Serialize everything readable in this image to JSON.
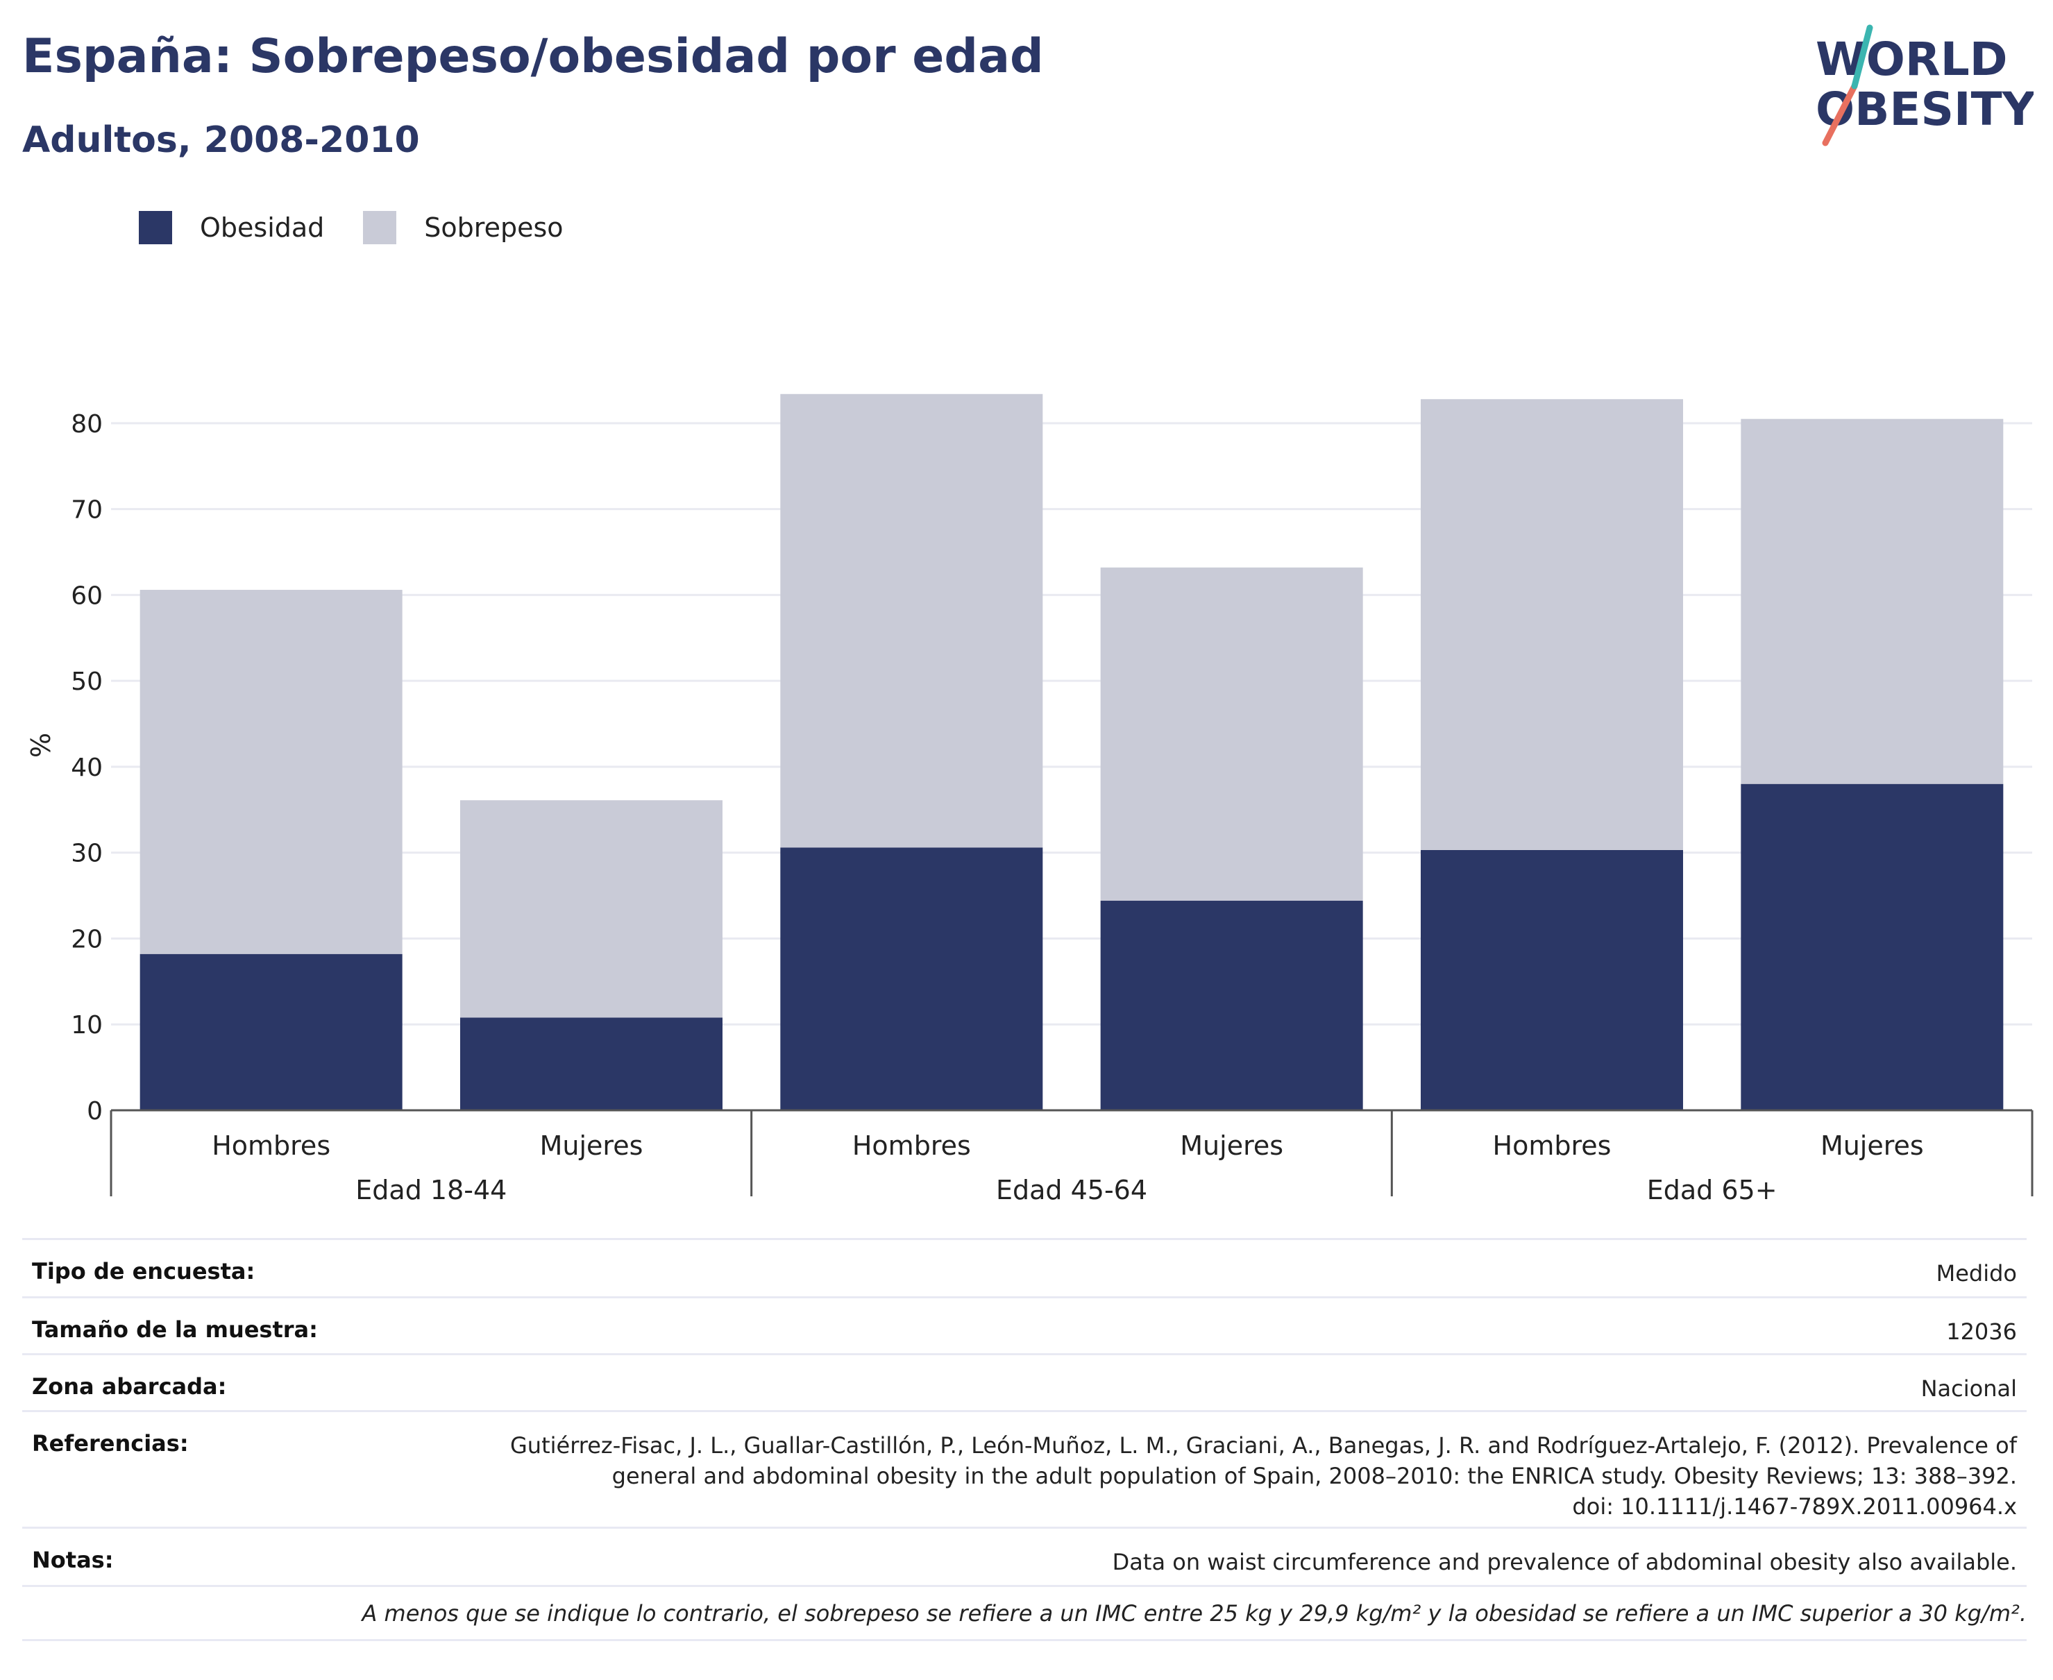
{
  "header": {
    "title": "España: Sobrepeso/obesidad por edad",
    "subtitle": "Adultos, 2008-2010"
  },
  "logo": {
    "line1": "WORLD",
    "line2": "OBESITY",
    "colors": [
      "#2b3766",
      "#e8705f",
      "#3bb5b0"
    ]
  },
  "legend": [
    {
      "label": "Obesidad",
      "color": "#2b3766"
    },
    {
      "label": "Sobrepeso",
      "color": "#c9cbd7"
    }
  ],
  "chart_data": {
    "type": "bar",
    "stacked": true,
    "title": "",
    "xlabel": "",
    "ylabel": "%",
    "ylim": [
      0,
      85
    ],
    "yticks": [
      0,
      10,
      20,
      30,
      40,
      50,
      60,
      70,
      80
    ],
    "grid": true,
    "legend_position": "top-left",
    "groups": [
      "Edad 18-44",
      "Edad 45-64",
      "Edad 65+"
    ],
    "categories": [
      "Hombres",
      "Mujeres",
      "Hombres",
      "Mujeres",
      "Hombres",
      "Mujeres"
    ],
    "series": [
      {
        "name": "Obesidad",
        "color": "#2b3766",
        "values": [
          18.2,
          10.8,
          30.6,
          24.4,
          30.3,
          38.0
        ]
      },
      {
        "name": "Sobrepeso",
        "color": "#c9cbd7",
        "values": [
          42.4,
          25.3,
          52.8,
          38.8,
          52.5,
          42.5
        ]
      }
    ]
  },
  "meta": {
    "survey_type": {
      "label": "Tipo de encuesta:",
      "value": "Medido"
    },
    "sample_size": {
      "label": "Tamaño de la muestra:",
      "value": "12036"
    },
    "area": {
      "label": "Zona abarcada:",
      "value": "Nacional"
    },
    "references": {
      "label": "Referencias:",
      "lines": [
        "Gutiérrez-Fisac, J. L., Guallar-Castillón, P., León-Muñoz, L. M., Graciani, A., Banegas, J. R. and Rodríguez-Artalejo, F. (2012). Prevalence of",
        "general and abdominal obesity in the adult population of Spain, 2008–2010: the ENRICA study. Obesity Reviews; 13: 388–392.",
        "doi: 10.1111/j.1467-789X.2011.00964.x"
      ]
    },
    "notes": {
      "label": "Notas:",
      "value": "Data on waist circumference and prevalence of abdominal obesity also available."
    }
  },
  "footnote": "A menos que se indique lo contrario, el sobrepeso se refiere a un IMC entre 25 kg y 29,9 kg/m² y la obesidad se refiere a un IMC superior a 30 kg/m²."
}
